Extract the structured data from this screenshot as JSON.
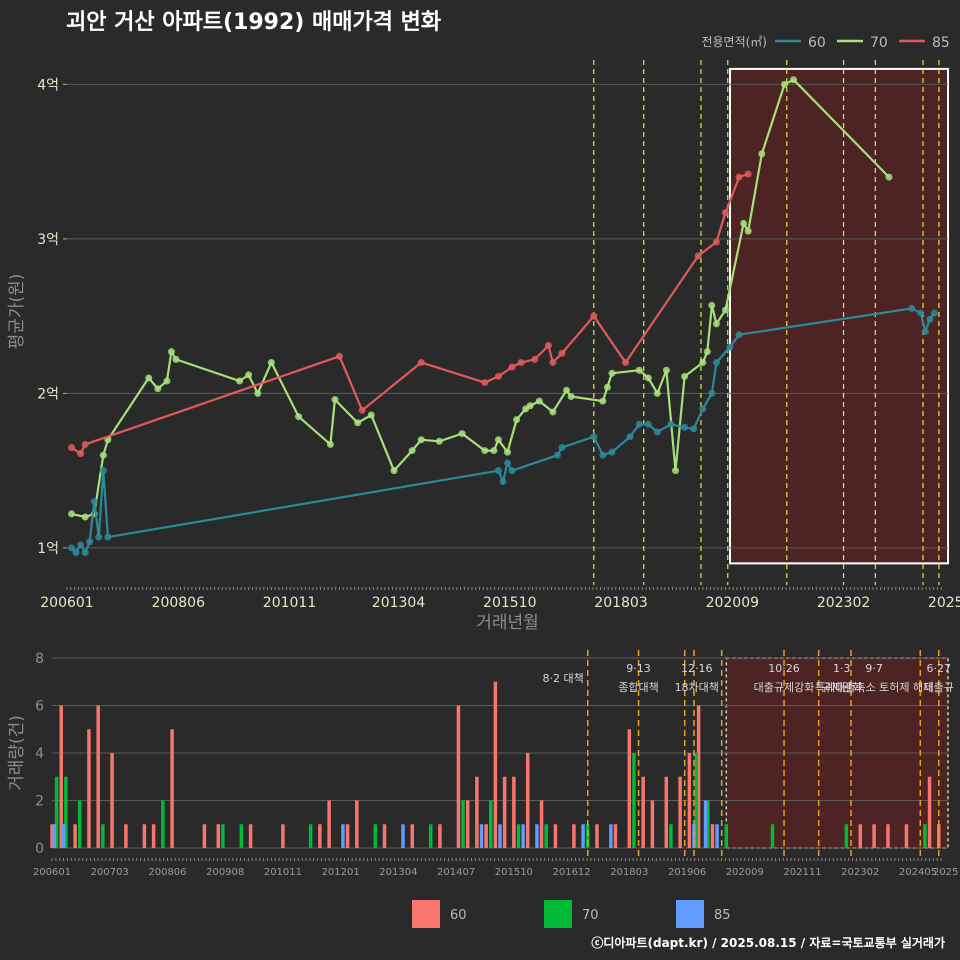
{
  "title": "괴안 거산 아파트(1992) 매매가격 변화",
  "credit": "ⓒ디아파트(dapt.kr) / 2025.08.15 / 자료=국토교통부 실거래가",
  "colors": {
    "s60": "#2b8a96",
    "s70": "#a6e07a",
    "s85": "#e05a5a",
    "bar60": "#f8766d",
    "bar70": "#00ba38",
    "bar85": "#619cff",
    "vline": "#e6e645",
    "vline_bottom": "#e6a020"
  },
  "chart_data": [
    {
      "type": "line",
      "title": "괴안 거산 아파트(1992) 매매가격 변화",
      "xlabel": "거래년월",
      "ylabel": "평균가(원)",
      "x_ticks": [
        "200601",
        "200806",
        "201011",
        "201304",
        "201510",
        "201803",
        "202009",
        "202302",
        "2025"
      ],
      "y_ticks": [
        "1억",
        "2억",
        "3억",
        "4억"
      ],
      "ylim": [
        0.76,
        4.3
      ],
      "legend": {
        "title": "전용면적(㎡)",
        "position": "top-right",
        "entries": [
          "60",
          "70",
          "85"
        ]
      },
      "vlines": [
        2017.6,
        2018.7,
        2019.96,
        2020.55,
        2021.85,
        2023.1,
        2023.8,
        2024.85,
        2025.2
      ],
      "highlight": {
        "x": [
          2020.6,
          2025.4
        ],
        "y": [
          0.9,
          4.1
        ]
      },
      "series": [
        {
          "name": "70",
          "points": [
            [
              2006.1,
              1.22
            ],
            [
              2006.4,
              1.2
            ],
            [
              2006.6,
              1.22
            ],
            [
              2006.8,
              1.6
            ],
            [
              2006.9,
              1.7
            ],
            [
              2007.8,
              2.1
            ],
            [
              2008.0,
              2.03
            ],
            [
              2008.2,
              2.08
            ],
            [
              2008.3,
              2.27
            ],
            [
              2008.4,
              2.22
            ],
            [
              2009.8,
              2.08
            ],
            [
              2010.0,
              2.12
            ],
            [
              2010.2,
              2.0
            ],
            [
              2010.5,
              2.2
            ],
            [
              2011.1,
              1.85
            ],
            [
              2011.8,
              1.67
            ],
            [
              2011.9,
              1.96
            ],
            [
              2012.4,
              1.81
            ],
            [
              2012.7,
              1.86
            ],
            [
              2013.2,
              1.5
            ],
            [
              2013.6,
              1.63
            ],
            [
              2013.8,
              1.7
            ],
            [
              2014.2,
              1.69
            ],
            [
              2014.7,
              1.74
            ],
            [
              2015.2,
              1.63
            ],
            [
              2015.4,
              1.63
            ],
            [
              2015.5,
              1.7
            ],
            [
              2015.7,
              1.62
            ],
            [
              2015.9,
              1.83
            ],
            [
              2016.1,
              1.9
            ],
            [
              2016.2,
              1.92
            ],
            [
              2016.4,
              1.95
            ],
            [
              2016.7,
              1.88
            ],
            [
              2017.0,
              2.02
            ],
            [
              2017.1,
              1.98
            ],
            [
              2017.8,
              1.95
            ],
            [
              2017.9,
              2.04
            ],
            [
              2018.0,
              2.13
            ],
            [
              2018.6,
              2.15
            ],
            [
              2018.8,
              2.1
            ],
            [
              2019.0,
              2.0
            ],
            [
              2019.2,
              2.15
            ],
            [
              2019.4,
              1.5
            ],
            [
              2019.6,
              2.11
            ],
            [
              2020.0,
              2.2
            ],
            [
              2020.1,
              2.27
            ],
            [
              2020.2,
              2.57
            ],
            [
              2020.3,
              2.45
            ],
            [
              2020.5,
              2.54
            ],
            [
              2020.9,
              3.1
            ],
            [
              2021.0,
              3.05
            ],
            [
              2021.3,
              3.55
            ],
            [
              2021.8,
              4.0
            ],
            [
              2022.0,
              4.03
            ],
            [
              2024.1,
              3.4
            ]
          ]
        },
        {
          "name": "85",
          "points": [
            [
              2006.1,
              1.65
            ],
            [
              2006.3,
              1.61
            ],
            [
              2006.4,
              1.67
            ],
            [
              2012.0,
              2.24
            ],
            [
              2012.5,
              1.89
            ],
            [
              2013.8,
              2.2
            ],
            [
              2015.2,
              2.07
            ],
            [
              2015.5,
              2.11
            ],
            [
              2015.8,
              2.17
            ],
            [
              2016.0,
              2.2
            ],
            [
              2016.3,
              2.22
            ],
            [
              2016.6,
              2.31
            ],
            [
              2016.7,
              2.2
            ],
            [
              2016.9,
              2.26
            ],
            [
              2017.6,
              2.5
            ],
            [
              2018.3,
              2.2
            ],
            [
              2019.9,
              2.89
            ],
            [
              2020.3,
              2.98
            ],
            [
              2020.5,
              3.17
            ],
            [
              2020.8,
              3.4
            ],
            [
              2021.0,
              3.42
            ]
          ]
        },
        {
          "name": "60",
          "points": [
            [
              2006.1,
              1.0
            ],
            [
              2006.2,
              0.97
            ],
            [
              2006.3,
              1.02
            ],
            [
              2006.4,
              0.97
            ],
            [
              2006.5,
              1.04
            ],
            [
              2006.6,
              1.3
            ],
            [
              2006.7,
              1.07
            ],
            [
              2006.8,
              1.5
            ],
            [
              2006.9,
              1.07
            ],
            [
              2015.5,
              1.5
            ],
            [
              2015.6,
              1.43
            ],
            [
              2015.7,
              1.55
            ],
            [
              2015.8,
              1.5
            ],
            [
              2016.8,
              1.6
            ],
            [
              2016.9,
              1.65
            ],
            [
              2017.6,
              1.72
            ],
            [
              2017.8,
              1.6
            ],
            [
              2018.0,
              1.62
            ],
            [
              2018.4,
              1.72
            ],
            [
              2018.6,
              1.8
            ],
            [
              2018.8,
              1.8
            ],
            [
              2019.0,
              1.75
            ],
            [
              2019.3,
              1.8
            ],
            [
              2019.6,
              1.78
            ],
            [
              2019.8,
              1.77
            ],
            [
              2020.0,
              1.9
            ],
            [
              2020.2,
              2.0
            ],
            [
              2020.3,
              2.2
            ],
            [
              2020.6,
              2.3
            ],
            [
              2020.8,
              2.38
            ],
            [
              2024.6,
              2.55
            ],
            [
              2024.8,
              2.52
            ],
            [
              2024.9,
              2.4
            ],
            [
              2025.0,
              2.48
            ],
            [
              2025.1,
              2.52
            ]
          ]
        }
      ]
    },
    {
      "type": "bar",
      "ylabel": "거래량(건)",
      "x_ticks": [
        "200601",
        "200703",
        "200806",
        "200908",
        "201011",
        "201201",
        "201304",
        "201407",
        "201510",
        "201612",
        "201803",
        "201906",
        "202009",
        "202111",
        "202302",
        "202405",
        "2025"
      ],
      "y_ticks": [
        "0",
        "2",
        "4",
        "6",
        "8"
      ],
      "ylim": [
        0,
        8
      ],
      "legend": {
        "position": "bottom",
        "entries": [
          "60",
          "70",
          "85"
        ]
      },
      "vlines": [
        2017.6,
        2018.7,
        2019.7,
        2019.9,
        2020.5,
        2021.85,
        2022.6,
        2023.3,
        2024.8,
        2025.2
      ],
      "highlight": {
        "x": [
          2020.6,
          2025.4
        ],
        "y": [
          0,
          8
        ]
      },
      "annotations": [
        {
          "x": 2017.6,
          "date": "",
          "text": "8·2 대책"
        },
        {
          "x": 2018.7,
          "date": "9·13",
          "text": "종합대책"
        },
        {
          "x": 2019.96,
          "date": "12·16",
          "text": "18차대책"
        },
        {
          "x": 2021.85,
          "date": "10·26",
          "text": "대출규제강화"
        },
        {
          "x": 2023.1,
          "date": "1·3",
          "text": "규제완화"
        },
        {
          "x": 2023.8,
          "date": "9·7",
          "text": "특례대출축소 토허제 해제"
        },
        {
          "x": 2025.2,
          "date": "6·27",
          "text": "대출규"
        }
      ],
      "series": [
        {
          "name": "60",
          "values": [
            [
              2006.0,
              1
            ],
            [
              2006.2,
              6
            ],
            [
              2006.5,
              1
            ],
            [
              2006.8,
              5
            ],
            [
              2007.0,
              6
            ],
            [
              2007.3,
              4
            ],
            [
              2007.6,
              1
            ],
            [
              2008.0,
              1
            ],
            [
              2008.2,
              1
            ],
            [
              2008.6,
              5
            ],
            [
              2009.3,
              1
            ],
            [
              2009.6,
              1
            ],
            [
              2010.3,
              1
            ],
            [
              2011.0,
              1
            ],
            [
              2011.8,
              1
            ],
            [
              2012.0,
              2
            ],
            [
              2012.4,
              1
            ],
            [
              2012.6,
              2
            ],
            [
              2013.2,
              1
            ],
            [
              2013.8,
              1
            ],
            [
              2014.4,
              1
            ],
            [
              2014.8,
              6
            ],
            [
              2015.0,
              2
            ],
            [
              2015.2,
              3
            ],
            [
              2015.4,
              1
            ],
            [
              2015.6,
              7
            ],
            [
              2015.8,
              3
            ],
            [
              2016.0,
              3
            ],
            [
              2016.3,
              4
            ],
            [
              2016.6,
              2
            ],
            [
              2016.9,
              1
            ],
            [
              2017.3,
              1
            ],
            [
              2017.8,
              1
            ],
            [
              2018.2,
              1
            ],
            [
              2018.5,
              5
            ],
            [
              2018.8,
              3
            ],
            [
              2019.0,
              2
            ],
            [
              2019.3,
              3
            ],
            [
              2019.6,
              3
            ],
            [
              2019.8,
              4
            ],
            [
              2020.0,
              6
            ],
            [
              2020.3,
              1
            ],
            [
              2023.5,
              1
            ],
            [
              2023.8,
              1
            ],
            [
              2024.1,
              1
            ],
            [
              2024.5,
              1
            ],
            [
              2025.0,
              3
            ],
            [
              2025.2,
              1
            ]
          ]
        },
        {
          "name": "70",
          "values": [
            [
              2006.1,
              3
            ],
            [
              2006.3,
              3
            ],
            [
              2006.6,
              2
            ],
            [
              2007.1,
              1
            ],
            [
              2008.4,
              2
            ],
            [
              2009.7,
              1
            ],
            [
              2010.1,
              1
            ],
            [
              2011.6,
              1
            ],
            [
              2013.0,
              1
            ],
            [
              2014.2,
              1
            ],
            [
              2014.9,
              2
            ],
            [
              2015.5,
              2
            ],
            [
              2016.1,
              1
            ],
            [
              2016.7,
              1
            ],
            [
              2017.6,
              1
            ],
            [
              2018.6,
              4
            ],
            [
              2019.4,
              1
            ],
            [
              2019.95,
              4
            ],
            [
              2020.2,
              2
            ],
            [
              2020.6,
              1
            ],
            [
              2021.6,
              1
            ],
            [
              2023.2,
              1
            ],
            [
              2024.9,
              1
            ]
          ]
        },
        {
          "name": "85",
          "values": [
            [
              2006.05,
              1
            ],
            [
              2006.25,
              1
            ],
            [
              2012.3,
              1
            ],
            [
              2013.6,
              1
            ],
            [
              2015.3,
              1
            ],
            [
              2015.7,
              1
            ],
            [
              2016.2,
              1
            ],
            [
              2016.5,
              1
            ],
            [
              2017.5,
              1
            ],
            [
              2018.1,
              1
            ],
            [
              2019.9,
              1
            ],
            [
              2020.15,
              2
            ],
            [
              2020.4,
              1
            ]
          ]
        }
      ]
    }
  ]
}
